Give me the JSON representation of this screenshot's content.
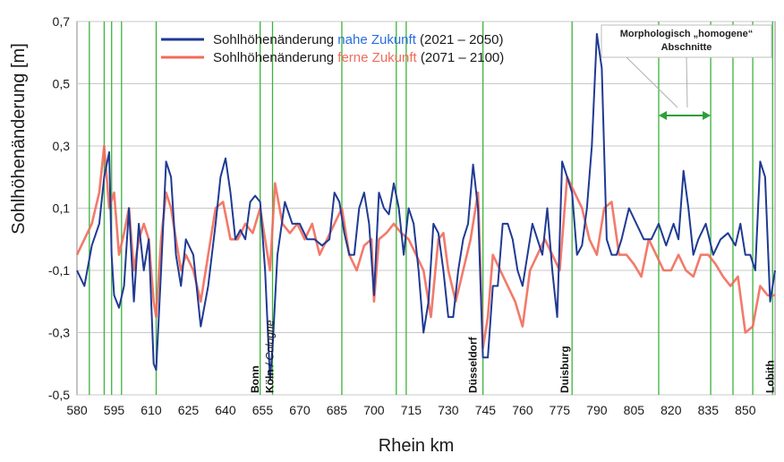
{
  "chart_data": {
    "type": "line",
    "ylabel": "Sohlhöhenänderung [m]",
    "xlabel": "Rhein km",
    "xlim": [
      580,
      862
    ],
    "ylim": [
      -0.5,
      0.7
    ],
    "x_ticks": [
      580,
      595,
      610,
      625,
      640,
      655,
      670,
      685,
      700,
      715,
      730,
      745,
      760,
      775,
      790,
      805,
      820,
      835,
      850
    ],
    "y_ticks": [
      -0.5,
      -0.3,
      -0.1,
      0.1,
      0.3,
      0.5,
      0.7
    ],
    "y_tick_labels": [
      "-0,5",
      "-0,3",
      "-0,1",
      "0,1",
      "0,3",
      "0,5",
      "0,7"
    ],
    "grid": "horizontal",
    "legend_placement": "top",
    "legend": [
      {
        "pre": "Sohlhöhenänderung ",
        "em": "nahe Zukunft",
        "post": " (2021 – 2050)",
        "color": "#1f3a93"
      },
      {
        "pre": "Sohlhöhenänderung ",
        "em": "ferne Zukunft",
        "post": " (2071 – 2100)",
        "color": "#f26b5b"
      }
    ],
    "annotation": {
      "line1": "Morphologisch „homogene“",
      "line2": "Abschnitte",
      "arrow_from": 815,
      "arrow_to": 836
    },
    "section_lines": [
      585,
      591,
      594,
      598,
      612,
      654,
      659,
      687,
      709,
      713,
      744,
      780,
      815,
      836,
      845,
      853,
      861
    ],
    "city_labels": [
      {
        "text": "Bonn",
        "x": 652
      },
      {
        "text": "Köln",
        "italic_suffix": " / Cologne",
        "x": 658
      },
      {
        "text": "Düsseldorf",
        "x": 740
      },
      {
        "text": "Duisburg",
        "x": 777
      },
      {
        "text": "Lobith",
        "x": 860
      }
    ],
    "series": [
      {
        "name": "Sohlhöhenänderung nahe Zukunft (2021 – 2050)",
        "color": "#1f3a93",
        "x": [
          580,
          583,
          586,
          589,
          591,
          593,
          594,
          595,
          597,
          599,
          601,
          603,
          605,
          607,
          609,
          611,
          612,
          614,
          616,
          618,
          620,
          622,
          624,
          627,
          630,
          633,
          636,
          638,
          640,
          642,
          644,
          646,
          648,
          650,
          652,
          654,
          656,
          658,
          659,
          661,
          664,
          667,
          670,
          673,
          676,
          679,
          682,
          684,
          686,
          688,
          690,
          692,
          694,
          696,
          698,
          700,
          702,
          704,
          706,
          708,
          710,
          712,
          714,
          716,
          718,
          720,
          722,
          724,
          726,
          728,
          730,
          732,
          734,
          736,
          738,
          740,
          742,
          744,
          746,
          748,
          750,
          752,
          754,
          756,
          758,
          760,
          762,
          764,
          766,
          768,
          770,
          772,
          774,
          776,
          778,
          780,
          782,
          784,
          786,
          788,
          790,
          792,
          794,
          796,
          798,
          800,
          803,
          806,
          809,
          812,
          815,
          818,
          821,
          823,
          825,
          827,
          829,
          831,
          834,
          837,
          840,
          843,
          846,
          848,
          850,
          852,
          854,
          856,
          858,
          860,
          862
        ],
        "y": [
          -0.1,
          -0.15,
          -0.02,
          0.05,
          0.2,
          0.28,
          -0.05,
          -0.18,
          -0.22,
          -0.15,
          0.1,
          -0.2,
          0.05,
          -0.1,
          0.0,
          -0.4,
          -0.42,
          -0.1,
          0.25,
          0.2,
          -0.05,
          -0.15,
          0.0,
          -0.05,
          -0.28,
          -0.15,
          0.05,
          0.2,
          0.26,
          0.15,
          0.0,
          0.03,
          0.0,
          0.12,
          0.14,
          0.12,
          -0.1,
          -0.45,
          -0.35,
          -0.05,
          0.12,
          0.05,
          0.05,
          0.0,
          0.0,
          -0.02,
          0.0,
          0.15,
          0.12,
          0.02,
          -0.05,
          -0.05,
          0.1,
          0.15,
          0.05,
          -0.18,
          0.15,
          0.1,
          0.08,
          0.18,
          0.1,
          -0.05,
          0.1,
          0.05,
          -0.1,
          -0.3,
          -0.2,
          0.05,
          0.02,
          -0.1,
          -0.25,
          -0.25,
          -0.1,
          0.0,
          0.05,
          0.24,
          0.1,
          -0.38,
          -0.38,
          -0.15,
          -0.15,
          0.05,
          0.05,
          0.0,
          -0.1,
          -0.15,
          -0.05,
          0.05,
          0.0,
          -0.05,
          0.1,
          -0.1,
          -0.25,
          0.25,
          0.2,
          0.15,
          -0.05,
          -0.02,
          0.1,
          0.3,
          0.66,
          0.55,
          0.0,
          -0.05,
          -0.05,
          0.0,
          0.1,
          0.05,
          0.0,
          0.0,
          0.05,
          -0.02,
          0.05,
          0.0,
          0.22,
          0.1,
          -0.05,
          0.0,
          0.05,
          -0.05,
          0.0,
          0.02,
          -0.02,
          0.05,
          -0.05,
          -0.05,
          -0.1,
          0.25,
          0.2,
          -0.2,
          -0.1
        ]
      },
      {
        "name": "Sohlhöhenänderung ferne Zukunft (2071 – 2100)",
        "color": "#f26b5b",
        "x": [
          580,
          583,
          586,
          589,
          591,
          593,
          595,
          597,
          599,
          601,
          603,
          605,
          607,
          609,
          611,
          612,
          614,
          616,
          618,
          620,
          622,
          624,
          627,
          630,
          633,
          636,
          639,
          642,
          645,
          648,
          651,
          654,
          656,
          658,
          660,
          663,
          666,
          669,
          672,
          675,
          678,
          681,
          684,
          687,
          690,
          693,
          696,
          699,
          700,
          702,
          705,
          708,
          711,
          714,
          717,
          720,
          723,
          726,
          728,
          730,
          733,
          736,
          739,
          742,
          744,
          746,
          748,
          751,
          754,
          757,
          760,
          763,
          766,
          769,
          772,
          775,
          778,
          781,
          784,
          787,
          790,
          793,
          796,
          799,
          802,
          805,
          808,
          811,
          814,
          817,
          820,
          823,
          826,
          829,
          832,
          835,
          838,
          841,
          844,
          847,
          850,
          853,
          856,
          859,
          862
        ],
        "y": [
          -0.05,
          0.0,
          0.05,
          0.15,
          0.3,
          0.1,
          0.15,
          -0.05,
          0.02,
          0.1,
          -0.1,
          0.0,
          0.05,
          0.0,
          -0.2,
          -0.25,
          0.0,
          0.15,
          0.1,
          0.0,
          -0.1,
          -0.05,
          -0.1,
          -0.2,
          -0.05,
          0.1,
          0.12,
          0.0,
          0.0,
          0.05,
          0.02,
          0.1,
          0.0,
          -0.1,
          0.18,
          0.05,
          0.02,
          0.05,
          0.0,
          0.05,
          -0.05,
          0.0,
          0.05,
          0.1,
          -0.05,
          -0.1,
          -0.02,
          0.0,
          -0.2,
          0.0,
          0.02,
          0.05,
          0.02,
          0.0,
          -0.05,
          -0.1,
          -0.25,
          0.0,
          0.02,
          -0.1,
          -0.2,
          -0.1,
          0.0,
          0.15,
          -0.35,
          -0.25,
          -0.05,
          -0.1,
          -0.15,
          -0.2,
          -0.28,
          -0.1,
          -0.05,
          0.0,
          -0.05,
          -0.1,
          0.2,
          0.15,
          0.1,
          0.0,
          -0.05,
          0.1,
          0.12,
          -0.05,
          -0.05,
          -0.08,
          -0.12,
          0.0,
          -0.05,
          -0.1,
          -0.1,
          -0.05,
          -0.1,
          -0.12,
          -0.05,
          -0.05,
          -0.08,
          -0.12,
          -0.15,
          -0.12,
          -0.3,
          -0.28,
          -0.15,
          -0.18,
          -0.18
        ]
      }
    ]
  }
}
